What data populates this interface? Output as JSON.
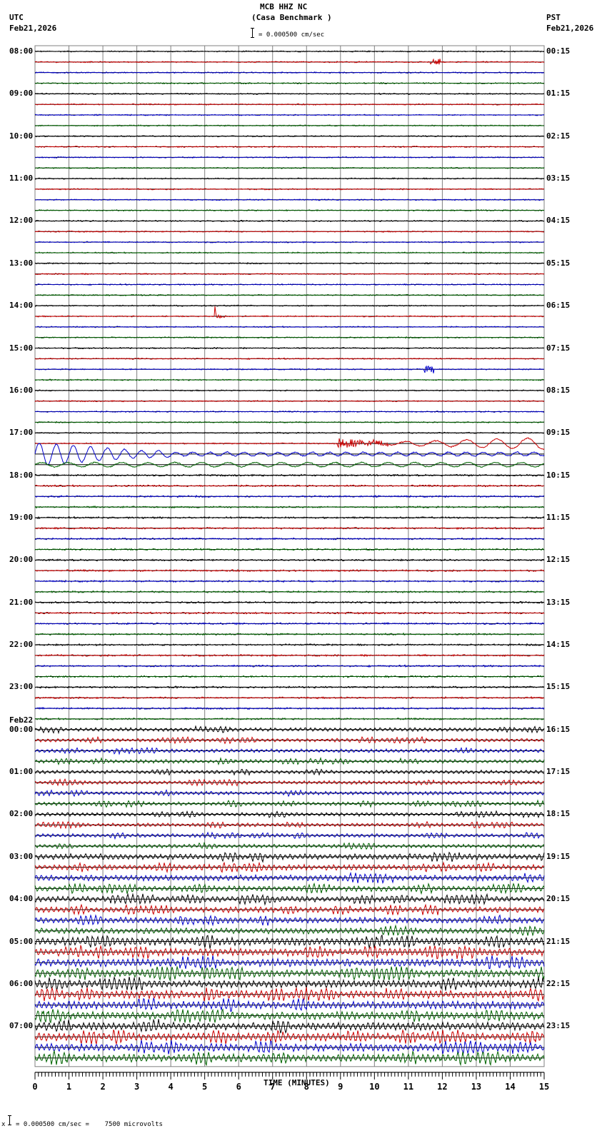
{
  "header": {
    "station": "MCB HHZ NC",
    "site": "(Casa Benchmark )",
    "scale_text": "= 0.000500 cm/sec",
    "left_tz": "UTC",
    "left_date": "Feb21,2026",
    "right_tz": "PST",
    "right_date": "Feb21,2026"
  },
  "footer": {
    "xlabel": "TIME (MINUTES)",
    "calibration": "= 0.000500 cm/sec =    7500 microvolts",
    "cal_prefix": "x"
  },
  "date_change_label": "Feb22",
  "colors": {
    "trace": [
      "#000000",
      "#cc0000",
      "#0000cc",
      "#006400"
    ],
    "grid": "#808080",
    "baseline": "#000000"
  },
  "chart_data": {
    "type": "line",
    "title": "MCB HHZ NC (Casa Benchmark )",
    "xlabel": "TIME (MINUTES)",
    "ylabel": "",
    "xlim": [
      0,
      15
    ],
    "x_ticks": [
      0,
      1,
      2,
      3,
      4,
      5,
      6,
      7,
      8,
      9,
      10,
      11,
      12,
      13,
      14,
      15
    ],
    "grid": true,
    "traces_per_hour": 4,
    "trace_count": 96,
    "left_hour_labels": [
      "08:00",
      "09:00",
      "10:00",
      "11:00",
      "12:00",
      "13:00",
      "14:00",
      "15:00",
      "16:00",
      "17:00",
      "18:00",
      "19:00",
      "20:00",
      "21:00",
      "22:00",
      "23:00",
      "00:00",
      "01:00",
      "02:00",
      "03:00",
      "04:00",
      "05:00",
      "06:00",
      "07:00"
    ],
    "right_hour_labels": [
      "00:15",
      "01:15",
      "02:15",
      "03:15",
      "04:15",
      "05:15",
      "06:15",
      "07:15",
      "08:15",
      "09:15",
      "10:15",
      "11:15",
      "12:15",
      "13:15",
      "14:15",
      "15:15",
      "16:15",
      "17:15",
      "18:15",
      "19:15",
      "20:15",
      "21:15",
      "22:15",
      "23:15"
    ],
    "scale": "0.000500 cm/sec = 7500 microvolts",
    "events": [
      {
        "trace": 1,
        "minute": 11.8,
        "type": "spike",
        "amp": 4
      },
      {
        "trace": 25,
        "minute": 5.3,
        "type": "local_quake",
        "amp": 14
      },
      {
        "trace": 30,
        "minute": 11.6,
        "type": "spike",
        "amp": 5
      },
      {
        "trace": 37,
        "minute": 8.9,
        "type": "teleseism_onset",
        "amp": 8,
        "label": "surface waves grow to end of trace"
      },
      {
        "trace": 38,
        "minute": 0.0,
        "type": "teleseism_decay",
        "amp": 16
      },
      {
        "trace": 39,
        "minute": 0.0,
        "type": "teleseism_tail",
        "amp": 3
      }
    ],
    "noise_levels": [
      {
        "from_trace": 0,
        "to_trace": 39,
        "amp": 0.8
      },
      {
        "from_trace": 40,
        "to_trace": 63,
        "amp": 1.1
      },
      {
        "from_trace": 64,
        "to_trace": 75,
        "amp": 2.0
      },
      {
        "from_trace": 76,
        "to_trace": 83,
        "amp": 3.2
      },
      {
        "from_trace": 84,
        "to_trace": 95,
        "amp": 4.4
      }
    ]
  }
}
